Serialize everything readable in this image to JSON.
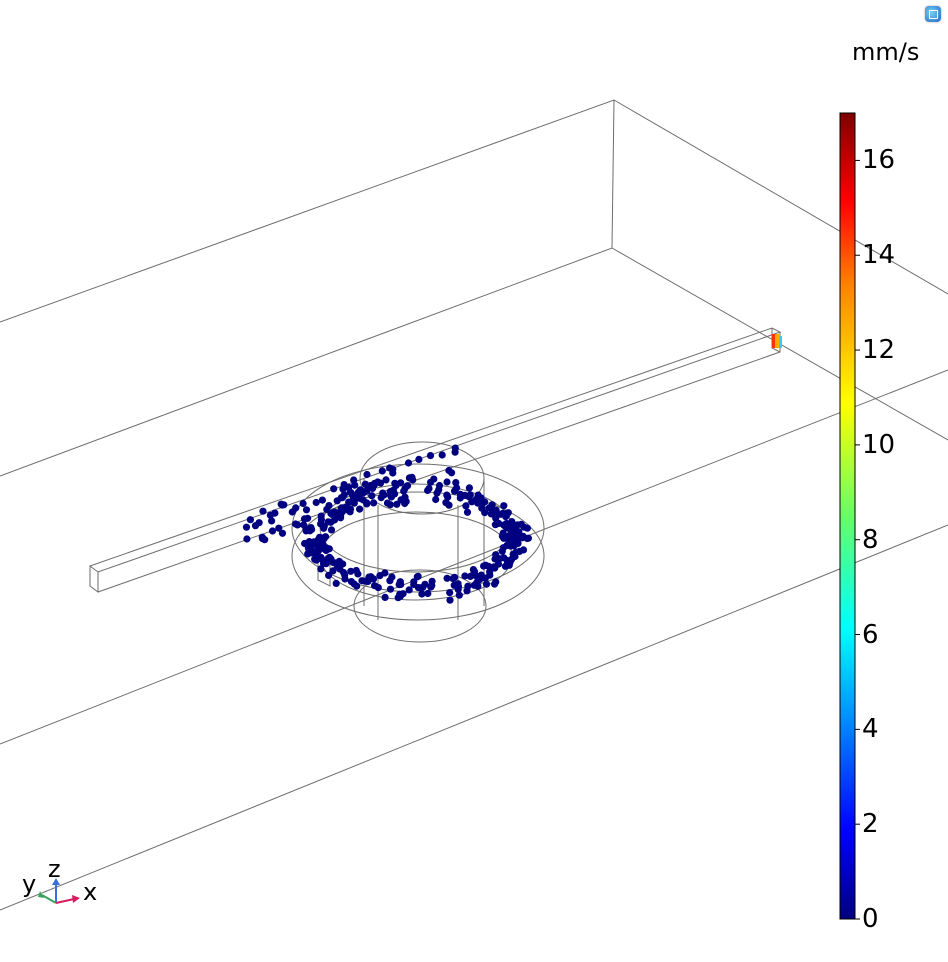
{
  "colorbar": {
    "unit": "mm/s",
    "min": 0,
    "max": 17,
    "ticks": [
      "0",
      "2",
      "4",
      "6",
      "8",
      "10",
      "12",
      "14",
      "16"
    ],
    "colormap": "rainbow"
  },
  "axes_triad": {
    "z": "z",
    "y": "y",
    "x": "x"
  },
  "colors": {
    "particle": "#000080",
    "wireframe": "#6e6e6e"
  },
  "corner_button": {
    "icon": "view-icon"
  }
}
